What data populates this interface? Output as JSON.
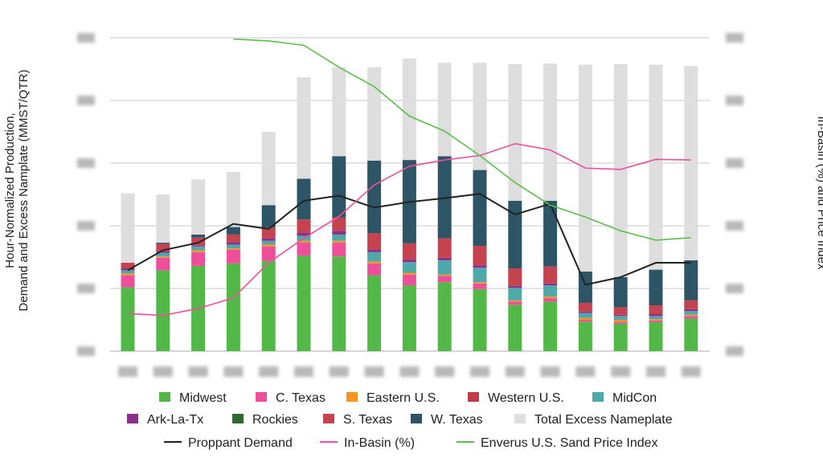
{
  "chart_data": {
    "type": "bar",
    "stacked": true,
    "ylabel_left": "Hour-Normalized Production, Demand and Excess Namplate (MMST/QTR)",
    "ylabel_right": "In-Basin (%) and Price Index",
    "ylim": [
      0,
      5
    ],
    "ylim_right": [
      0,
      5
    ],
    "tick_labels_obscured": true,
    "grid": "horizontal",
    "legend_position": "bottom",
    "categories": [
      "1",
      "2",
      "3",
      "4",
      "5",
      "6",
      "7",
      "8",
      "9",
      "10",
      "11",
      "12",
      "13",
      "14",
      "15",
      "16",
      "17"
    ],
    "series": [
      {
        "name": "Midwest",
        "color": "#52b848",
        "values": [
          1.02,
          1.29,
          1.36,
          1.4,
          1.44,
          1.52,
          1.51,
          1.21,
          1.05,
          1.1,
          0.99,
          0.74,
          0.79,
          0.47,
          0.44,
          0.46,
          0.52
        ]
      },
      {
        "name": "C. Texas",
        "color": "#ee4f9a",
        "values": [
          0.19,
          0.2,
          0.22,
          0.22,
          0.23,
          0.21,
          0.22,
          0.19,
          0.17,
          0.1,
          0.09,
          0.05,
          0.05,
          0.03,
          0.03,
          0.03,
          0.04
        ]
      },
      {
        "name": "Eastern U.S.",
        "color": "#f7941d",
        "values": [
          0.03,
          0.02,
          0.03,
          0.02,
          0.03,
          0.03,
          0.03,
          0.03,
          0.03,
          0.02,
          0.02,
          0.02,
          0.03,
          0.03,
          0.03,
          0.02,
          0.02
        ]
      },
      {
        "name": "Western U.S.",
        "color": "#c23b4a",
        "values": [
          0,
          0,
          0,
          0,
          0,
          0,
          0,
          0,
          0,
          0,
          0,
          0,
          0,
          0,
          0,
          0,
          0
        ]
      },
      {
        "name": "MidCon",
        "color": "#4fa9aa",
        "values": [
          0.05,
          0.06,
          0.06,
          0.06,
          0.06,
          0.08,
          0.1,
          0.15,
          0.17,
          0.23,
          0.23,
          0.2,
          0.18,
          0.08,
          0.06,
          0.05,
          0.06
        ]
      },
      {
        "name": "Ark-La-Tx",
        "color": "#8b2f8b",
        "values": [
          0.03,
          0.03,
          0.02,
          0.04,
          0.04,
          0.05,
          0.06,
          0.04,
          0.04,
          0.04,
          0.04,
          0.03,
          0.03,
          0.02,
          0.02,
          0.03,
          0.03
        ]
      },
      {
        "name": "Rockies",
        "color": "#2e6b2e",
        "values": [
          0,
          0,
          0,
          0,
          0,
          0,
          0,
          0,
          0,
          0,
          0,
          0,
          0,
          0,
          0,
          0,
          0
        ]
      },
      {
        "name": "S. Texas",
        "color": "#c5424f",
        "values": [
          0.09,
          0.11,
          0.12,
          0.12,
          0.17,
          0.21,
          0.21,
          0.26,
          0.26,
          0.31,
          0.31,
          0.28,
          0.27,
          0.14,
          0.12,
          0.14,
          0.14
        ]
      },
      {
        "name": "W. Texas",
        "color": "#2e5566",
        "values": [
          0,
          0.02,
          0.05,
          0.12,
          0.36,
          0.65,
          0.98,
          1.16,
          1.33,
          1.31,
          1.21,
          1.08,
          1.05,
          0.5,
          0.48,
          0.57,
          0.64
        ]
      },
      {
        "name": "Total Excess Nameplate",
        "color": "#dedede",
        "values": [
          1.11,
          0.77,
          0.88,
          0.88,
          1.17,
          1.62,
          1.42,
          1.49,
          1.62,
          1.49,
          1.71,
          2.18,
          2.19,
          3.3,
          3.4,
          3.27,
          3.1
        ]
      }
    ],
    "lines": [
      {
        "name": "Proppant Demand",
        "color": "#222222",
        "axis": "left",
        "values": [
          1.29,
          1.61,
          1.73,
          2.03,
          1.95,
          2.4,
          2.48,
          2.29,
          2.38,
          2.44,
          2.51,
          2.18,
          2.35,
          1.06,
          1.18,
          1.41,
          1.41
        ]
      },
      {
        "name": "In-Basin (%)",
        "color": "#ee4f9a",
        "axis": "right",
        "values": [
          0.6,
          0.57,
          0.68,
          0.85,
          1.41,
          1.8,
          2.15,
          2.65,
          2.95,
          3.05,
          3.12,
          3.31,
          3.21,
          2.92,
          2.9,
          3.06,
          3.05
        ]
      },
      {
        "name": "Enverus U.S. Sand Price Index",
        "color": "#5cbf4a",
        "axis": "right",
        "values": [
          null,
          null,
          null,
          4.98,
          4.95,
          4.88,
          4.53,
          4.22,
          3.75,
          3.51,
          3.12,
          2.69,
          2.33,
          2.14,
          1.92,
          1.77,
          1.81
        ]
      }
    ]
  }
}
